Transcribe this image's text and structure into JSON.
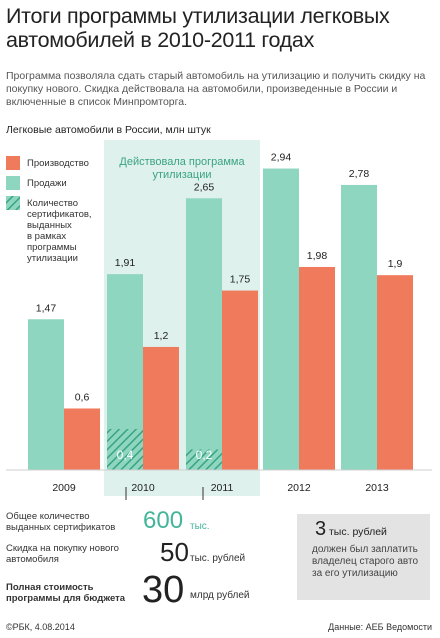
{
  "header": {
    "title": "Итоги программы утилизации легковых автомобилей в 2010-2011 годах",
    "intro": "Программа позволяла сдать старый автомобиль на утилизацию и получить скидку на покупку нового. Скидка действовала на автомобили, произведенные в России и включенные в список Минпромторга.",
    "subtitle": "Легковые автомобили в России, млн штук"
  },
  "colors": {
    "production": "#ef7a5c",
    "sales": "#8ed6c0",
    "certificates": "#3aa383",
    "program_band": "#dff1ec",
    "program_label": "#3aa383"
  },
  "chart_data": {
    "type": "bar",
    "categories": [
      "2009",
      "2010",
      "2011",
      "2012",
      "2013"
    ],
    "series": [
      {
        "name": "Продажи",
        "values": [
          1.47,
          1.91,
          2.65,
          2.94,
          2.78
        ],
        "labels": [
          "1,47",
          "1,91",
          "2,65",
          "2,94",
          "2,78"
        ]
      },
      {
        "name": "Производство",
        "values": [
          0.6,
          1.2,
          1.75,
          1.98,
          1.9
        ],
        "labels": [
          "0,6",
          "1,2",
          "1,75",
          "1,98",
          "1,9"
        ]
      },
      {
        "name": "Количество сертификатов, выданных в рамках программы утилизации",
        "values": [
          null,
          0.4,
          0.2,
          null,
          null
        ],
        "labels": [
          "",
          "0,4",
          "0,2",
          "",
          ""
        ]
      }
    ],
    "legend": [
      "Производство",
      "Продажи",
      "Количество сертификатов, выданных в рамках программы утилизации"
    ],
    "legend_position": "top-left",
    "annotation": "Действовала программа утилизации",
    "annotation_categories": [
      "2010",
      "2011"
    ],
    "ylim": [
      0,
      3.15
    ],
    "grid": false
  },
  "summary": {
    "certificates_label": "Общее количество выданных сертификатов",
    "certificates_value": "600",
    "certificates_unit": "тыс.",
    "discount_label": "Скидка на покупку нового автомобиля",
    "discount_value": "50",
    "discount_unit": "тыс. рублей",
    "budget_label": "Полная стоимость программы для бюджета",
    "budget_value": "30",
    "budget_unit": "млрд рублей"
  },
  "callout": {
    "value": "3",
    "unit": "тыс. рублей",
    "text": "должен был заплатить владелец старого авто за его утилизацию"
  },
  "footer": {
    "source_left": "©РБК, 4.08.2014",
    "source_right": "Данные: АЕБ Ведомости"
  }
}
